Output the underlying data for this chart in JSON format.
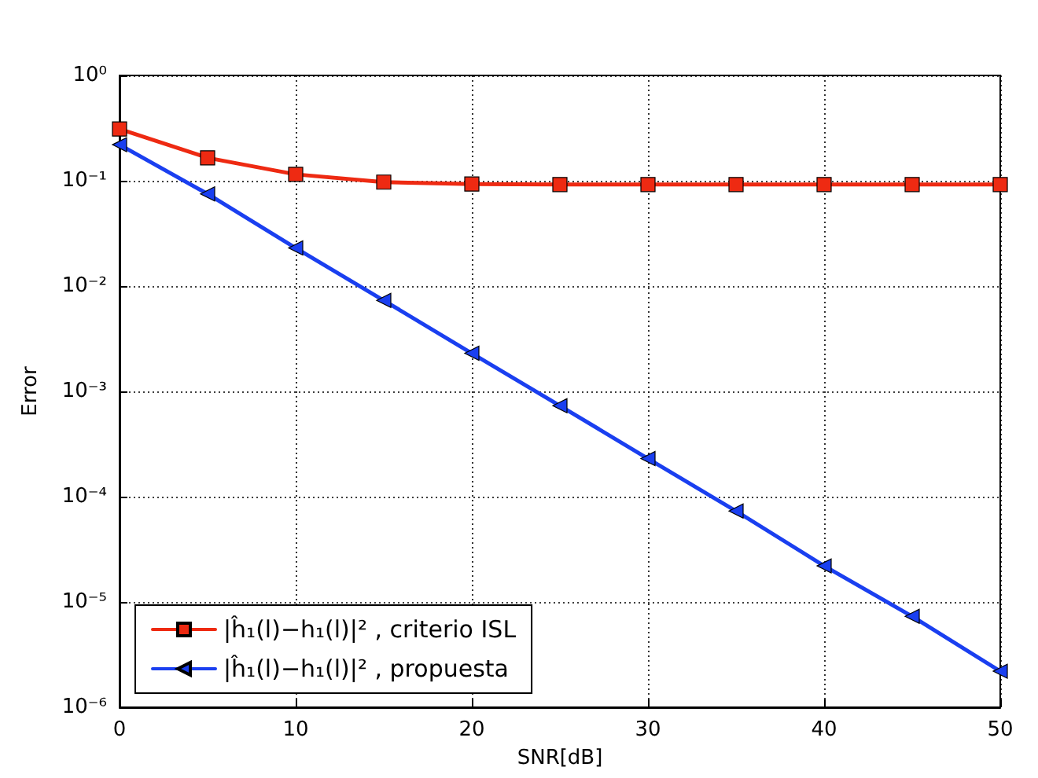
{
  "chart_data": {
    "type": "line",
    "xlabel": "SNR[dB]",
    "ylabel": "Error",
    "x": [
      0,
      5,
      10,
      15,
      20,
      25,
      30,
      35,
      40,
      45,
      50
    ],
    "series": [
      {
        "name": "|ĥ₁(l)−h₁(l)|² , criterio ISL",
        "color": "#ee2a12",
        "marker": "square",
        "values": [
          0.31,
          0.165,
          0.115,
          0.097,
          0.093,
          0.092,
          0.092,
          0.092,
          0.092,
          0.092,
          0.092
        ]
      },
      {
        "name": "|ĥ₁(l)−h₁(l)|² , propuesta",
        "color": "#1a3ff0",
        "marker": "triangle",
        "values": [
          0.22,
          0.075,
          0.023,
          0.0073,
          0.0023,
          0.00073,
          0.00023,
          7.3e-05,
          2.2e-05,
          7.3e-06,
          2.2e-06
        ]
      }
    ],
    "xlim": [
      0,
      50
    ],
    "xticks": [
      0,
      10,
      20,
      30,
      40,
      50
    ],
    "ylim": [
      1e-06,
      1
    ],
    "yticks": [
      {
        "value": 1e-06,
        "label": "10⁻⁶"
      },
      {
        "value": 1e-05,
        "label": "10⁻⁵"
      },
      {
        "value": 0.0001,
        "label": "10⁻⁴"
      },
      {
        "value": 0.001,
        "label": "10⁻³"
      },
      {
        "value": 0.01,
        "label": "10⁻²"
      },
      {
        "value": 0.1,
        "label": "10⁻¹"
      },
      {
        "value": 1,
        "label": "10⁰"
      }
    ],
    "log": "y",
    "grid": true,
    "legend": "bottom left",
    "line_style": "solid"
  }
}
